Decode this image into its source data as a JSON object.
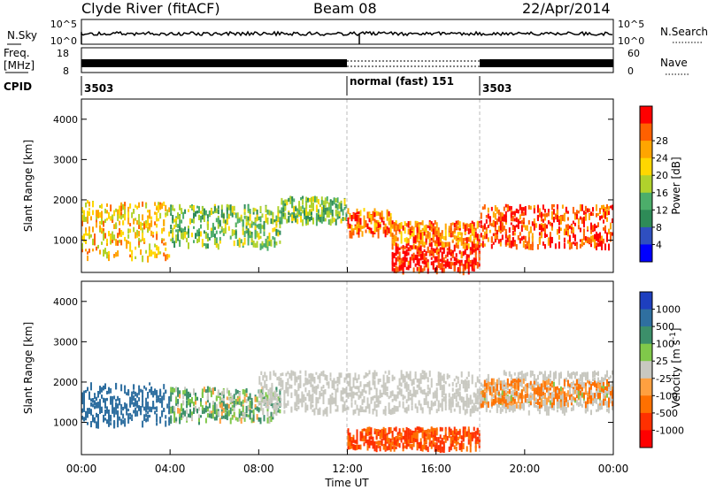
{
  "header": {
    "station": "Clyde River (fitACF)",
    "beam": "Beam 08",
    "date": "22/Apr/2014"
  },
  "top_panels": {
    "nsky_label": "N.Sky",
    "nsky_ticks": [
      "10^5",
      "10^0"
    ],
    "nsearch_label": "N.Search",
    "nsearch_ticks": [
      "10^5",
      "10^0"
    ],
    "freq_label": "Freq.",
    "freq_unit": "[MHz]",
    "freq_ticks": [
      "18",
      "8"
    ],
    "nave_label": "Nave",
    "nave_ticks": [
      "60",
      "0"
    ],
    "cpid_label": "CPID",
    "cpid_segments": [
      {
        "label": "3503",
        "start_h": 0,
        "end_h": 12
      },
      {
        "label": "normal (fast) 151",
        "start_h": 12,
        "end_h": 18
      },
      {
        "label": "3503",
        "start_h": 18,
        "end_h": 24
      }
    ]
  },
  "chart_data": [
    {
      "type": "heatmap",
      "name": "power",
      "ylabel": "Slant Range [km]",
      "ylim": [
        200,
        4500
      ],
      "yticks": [
        "1000",
        "2000",
        "3000",
        "4000"
      ],
      "colorbar_label": "Power [dB]",
      "colorbar_ticks": [
        "4",
        "8",
        "12",
        "16",
        "20",
        "24",
        "28"
      ],
      "colors": [
        "#0000ff",
        "#2f4fc0",
        "#2e8b57",
        "#4cae6a",
        "#b0d22c",
        "#ffd700",
        "#ffa500",
        "#ff6000",
        "#ff0000"
      ],
      "bands": [
        {
          "start_h": 0,
          "end_h": 4,
          "range_km": [
            600,
            2000
          ],
          "level": 20
        },
        {
          "start_h": 4,
          "end_h": 9,
          "range_km": [
            900,
            1900
          ],
          "level": 14
        },
        {
          "start_h": 9,
          "end_h": 12,
          "range_km": [
            1500,
            2100
          ],
          "level": 14
        },
        {
          "start_h": 12,
          "end_h": 14,
          "range_km": [
            1200,
            1800
          ],
          "level": 24
        },
        {
          "start_h": 14,
          "end_h": 18,
          "range_km": [
            300,
            900
          ],
          "level": 28
        },
        {
          "start_h": 14,
          "end_h": 18,
          "range_km": [
            900,
            1500
          ],
          "level": 24
        },
        {
          "start_h": 18,
          "end_h": 24,
          "range_km": [
            900,
            1900
          ],
          "level": 26
        }
      ]
    },
    {
      "type": "heatmap",
      "name": "velocity",
      "ylabel": "Slant Range [km]",
      "ylim": [
        200,
        4500
      ],
      "yticks": [
        "1000",
        "2000",
        "3000",
        "4000"
      ],
      "xlabel": "Time UT",
      "xlim": [
        0,
        24
      ],
      "xticks": [
        "00:00",
        "04:00",
        "08:00",
        "12:00",
        "16:00",
        "20:00",
        "00:00"
      ],
      "colorbar_label": "Velocity [m s",
      "colorbar_unit_exp": "-1",
      "colorbar_ticks": [
        "1000",
        "500",
        "100",
        "25",
        "-25",
        "-100",
        "-500",
        "-1000"
      ],
      "colors": [
        "#1e3fbf",
        "#2f6fa0",
        "#3c8f6a",
        "#80c84a",
        "#c8c8c0",
        "#ffa040",
        "#ff7000",
        "#ff3000",
        "#ff0000"
      ],
      "ground_scatter_color": "#c8c8c0",
      "bands": [
        {
          "start_h": 0,
          "end_h": 4,
          "range_km": [
            1000,
            2000
          ],
          "level": 500
        },
        {
          "start_h": 4,
          "end_h": 9,
          "range_km": [
            1100,
            1900
          ],
          "level": 100
        },
        {
          "start_h": 8,
          "end_h": 24,
          "range_km": [
            1300,
            2300
          ],
          "level": 0
        },
        {
          "start_h": 12,
          "end_h": 18,
          "range_km": [
            400,
            900
          ],
          "level": -300
        },
        {
          "start_h": 18,
          "end_h": 24,
          "range_km": [
            1500,
            2100
          ],
          "level": -100
        }
      ]
    }
  ]
}
